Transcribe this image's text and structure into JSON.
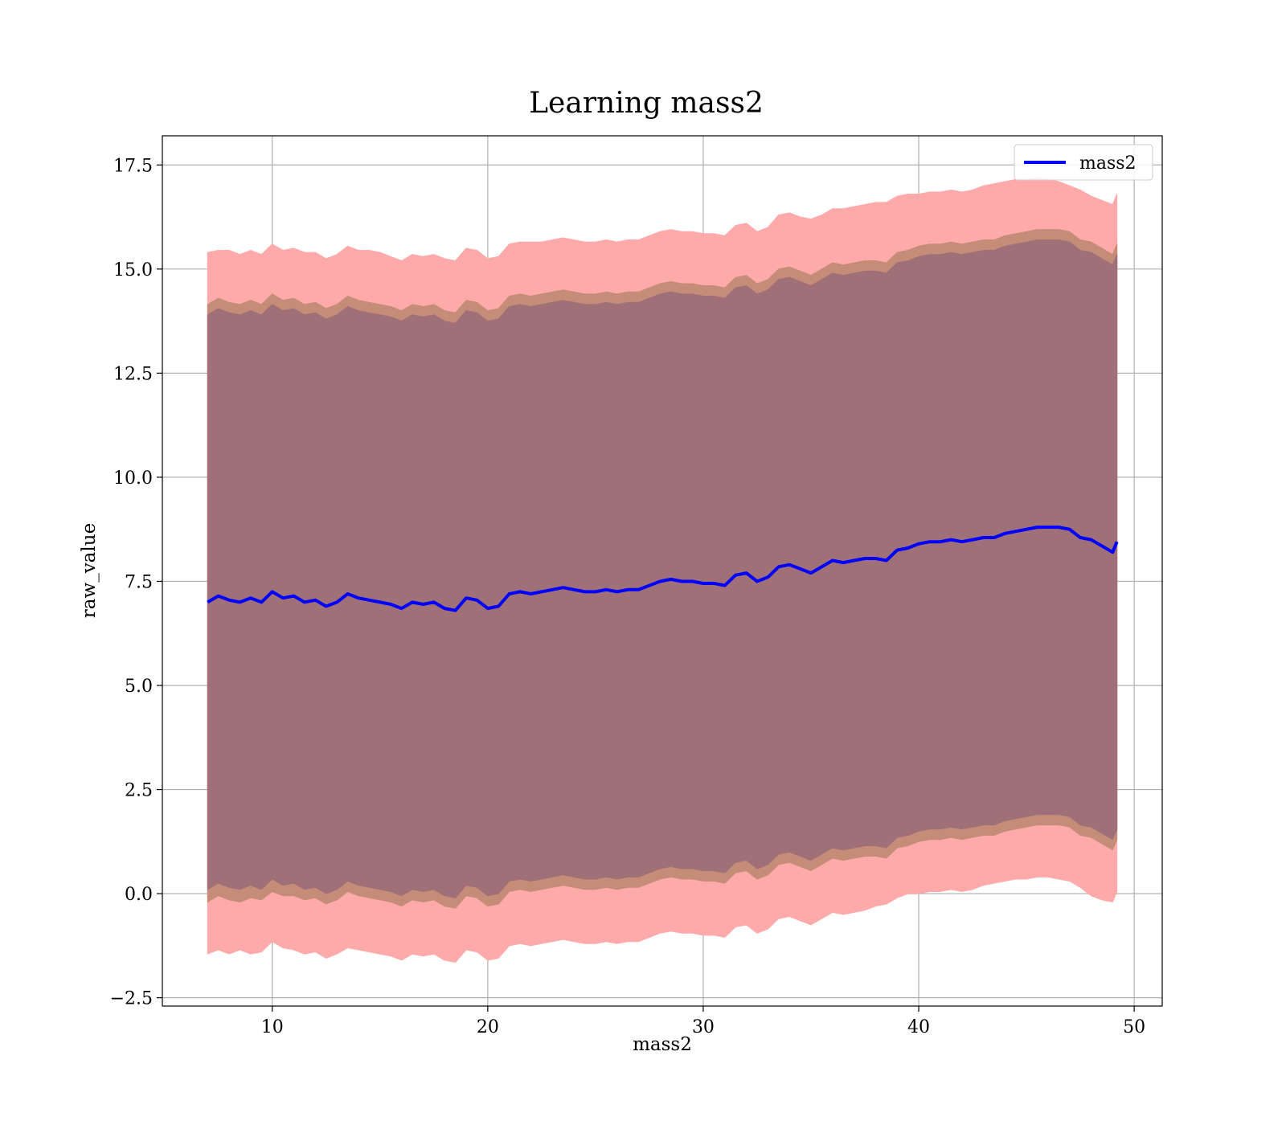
{
  "chart_data": {
    "type": "area",
    "title": "Learning mass2",
    "xlabel": "mass2",
    "ylabel": "raw_value",
    "xlim": [
      4.9,
      51.3
    ],
    "ylim": [
      -2.7,
      18.2
    ],
    "xticks": [
      10,
      20,
      30,
      40,
      50
    ],
    "yticks": [
      -2.5,
      0.0,
      2.5,
      5.0,
      7.5,
      10.0,
      12.5,
      15.0,
      17.5
    ],
    "xtick_labels": [
      "10",
      "20",
      "30",
      "40",
      "50"
    ],
    "ytick_labels": [
      "−2.5",
      "0.0",
      "2.5",
      "5.0",
      "7.5",
      "10.0",
      "12.5",
      "15.0",
      "17.5"
    ],
    "grid": true,
    "legend": {
      "position": "top-right",
      "entries": [
        "mass2"
      ]
    },
    "x": [
      7.0,
      7.5,
      8.0,
      8.5,
      9.0,
      9.5,
      10.0,
      10.5,
      11.0,
      11.5,
      12.0,
      12.5,
      13.0,
      13.5,
      14.0,
      14.5,
      15.0,
      15.5,
      16.0,
      16.5,
      17.0,
      17.5,
      18.0,
      18.5,
      19.0,
      19.5,
      20.0,
      20.5,
      21.0,
      21.5,
      22.0,
      22.5,
      23.0,
      23.5,
      24.0,
      24.5,
      25.0,
      25.5,
      26.0,
      26.5,
      27.0,
      27.5,
      28.0,
      28.5,
      29.0,
      29.5,
      30.0,
      30.5,
      31.0,
      31.5,
      32.0,
      32.5,
      33.0,
      33.5,
      34.0,
      34.5,
      35.0,
      35.5,
      36.0,
      36.5,
      37.0,
      37.5,
      38.0,
      38.5,
      39.0,
      39.5,
      40.0,
      40.5,
      41.0,
      41.5,
      42.0,
      42.5,
      43.0,
      43.5,
      44.0,
      44.5,
      45.0,
      45.5,
      46.0,
      46.5,
      47.0,
      47.5,
      48.0,
      48.5,
      49.0,
      49.2
    ],
    "series": [
      {
        "name": "mass2",
        "color": "#0000ff",
        "values": [
          7.0,
          7.15,
          7.05,
          7.0,
          7.1,
          7.0,
          7.25,
          7.1,
          7.15,
          7.0,
          7.05,
          6.9,
          7.0,
          7.2,
          7.1,
          7.05,
          7.0,
          6.95,
          6.85,
          7.0,
          6.95,
          7.0,
          6.85,
          6.8,
          7.1,
          7.05,
          6.85,
          6.9,
          7.2,
          7.25,
          7.2,
          7.25,
          7.3,
          7.35,
          7.3,
          7.25,
          7.25,
          7.3,
          7.25,
          7.3,
          7.3,
          7.4,
          7.5,
          7.55,
          7.5,
          7.5,
          7.45,
          7.45,
          7.4,
          7.65,
          7.7,
          7.5,
          7.6,
          7.85,
          7.9,
          7.8,
          7.7,
          7.85,
          8.0,
          7.95,
          8.0,
          8.05,
          8.05,
          8.0,
          8.25,
          8.3,
          8.4,
          8.45,
          8.45,
          8.5,
          8.45,
          8.5,
          8.55,
          8.55,
          8.65,
          8.7,
          8.75,
          8.8,
          8.8,
          8.8,
          8.75,
          8.55,
          8.5,
          8.35,
          8.2,
          8.45
        ]
      }
    ],
    "bands": [
      {
        "color": "#ffaaaa",
        "lower": [
          -1.45,
          -1.35,
          -1.45,
          -1.35,
          -1.45,
          -1.4,
          -1.15,
          -1.3,
          -1.35,
          -1.45,
          -1.4,
          -1.55,
          -1.45,
          -1.3,
          -1.35,
          -1.4,
          -1.45,
          -1.5,
          -1.6,
          -1.45,
          -1.5,
          -1.45,
          -1.6,
          -1.65,
          -1.35,
          -1.4,
          -1.6,
          -1.55,
          -1.25,
          -1.2,
          -1.25,
          -1.2,
          -1.15,
          -1.1,
          -1.15,
          -1.2,
          -1.2,
          -1.15,
          -1.2,
          -1.15,
          -1.15,
          -1.05,
          -0.95,
          -0.9,
          -0.95,
          -0.95,
          -1.0,
          -1.0,
          -1.05,
          -0.8,
          -0.75,
          -0.95,
          -0.85,
          -0.6,
          -0.55,
          -0.65,
          -0.75,
          -0.6,
          -0.45,
          -0.5,
          -0.45,
          -0.4,
          -0.3,
          -0.25,
          -0.1,
          0.0,
          0.0,
          0.05,
          0.05,
          0.1,
          0.05,
          0.1,
          0.2,
          0.25,
          0.3,
          0.35,
          0.35,
          0.4,
          0.4,
          0.35,
          0.3,
          0.15,
          -0.05,
          -0.15,
          -0.2,
          0.05
        ],
        "upper": [
          15.4,
          15.45,
          15.45,
          15.35,
          15.45,
          15.35,
          15.6,
          15.45,
          15.5,
          15.4,
          15.4,
          15.25,
          15.35,
          15.55,
          15.45,
          15.45,
          15.4,
          15.3,
          15.2,
          15.35,
          15.3,
          15.35,
          15.25,
          15.2,
          15.5,
          15.45,
          15.25,
          15.3,
          15.6,
          15.65,
          15.65,
          15.65,
          15.7,
          15.75,
          15.7,
          15.65,
          15.65,
          15.7,
          15.65,
          15.7,
          15.7,
          15.8,
          15.9,
          15.95,
          15.9,
          15.9,
          15.85,
          15.85,
          15.8,
          16.05,
          16.1,
          15.9,
          16.0,
          16.3,
          16.35,
          16.25,
          16.2,
          16.3,
          16.45,
          16.45,
          16.5,
          16.55,
          16.6,
          16.6,
          16.75,
          16.8,
          16.8,
          16.85,
          16.85,
          16.9,
          16.85,
          16.9,
          17.0,
          17.05,
          17.1,
          17.15,
          17.15,
          17.2,
          17.15,
          17.1,
          17.0,
          16.9,
          16.75,
          16.65,
          16.55,
          16.8
        ]
      },
      {
        "color": "#c58d78",
        "lower": [
          -0.2,
          -0.05,
          -0.15,
          -0.2,
          -0.1,
          -0.15,
          0.05,
          -0.05,
          -0.05,
          -0.15,
          -0.1,
          -0.25,
          -0.15,
          0.05,
          -0.05,
          -0.1,
          -0.15,
          -0.2,
          -0.3,
          -0.15,
          -0.2,
          -0.15,
          -0.3,
          -0.35,
          -0.05,
          -0.1,
          -0.3,
          -0.25,
          0.05,
          0.1,
          0.05,
          0.1,
          0.15,
          0.2,
          0.15,
          0.1,
          0.1,
          0.15,
          0.1,
          0.15,
          0.15,
          0.25,
          0.35,
          0.4,
          0.35,
          0.35,
          0.3,
          0.3,
          0.25,
          0.5,
          0.55,
          0.35,
          0.45,
          0.7,
          0.75,
          0.65,
          0.55,
          0.7,
          0.85,
          0.8,
          0.85,
          0.9,
          0.9,
          0.85,
          1.1,
          1.15,
          1.25,
          1.3,
          1.3,
          1.35,
          1.3,
          1.35,
          1.4,
          1.4,
          1.5,
          1.55,
          1.6,
          1.65,
          1.65,
          1.65,
          1.6,
          1.4,
          1.35,
          1.2,
          1.05,
          1.3
        ],
        "upper": [
          14.15,
          14.3,
          14.2,
          14.15,
          14.25,
          14.15,
          14.4,
          14.25,
          14.3,
          14.15,
          14.2,
          14.05,
          14.15,
          14.35,
          14.25,
          14.2,
          14.15,
          14.1,
          14.0,
          14.15,
          14.1,
          14.15,
          14.0,
          13.95,
          14.25,
          14.2,
          14.0,
          14.05,
          14.35,
          14.4,
          14.35,
          14.4,
          14.45,
          14.5,
          14.45,
          14.4,
          14.4,
          14.45,
          14.4,
          14.45,
          14.45,
          14.55,
          14.65,
          14.7,
          14.65,
          14.65,
          14.6,
          14.6,
          14.55,
          14.8,
          14.85,
          14.65,
          14.75,
          15.0,
          15.05,
          14.95,
          14.85,
          15.0,
          15.15,
          15.1,
          15.15,
          15.2,
          15.2,
          15.15,
          15.4,
          15.45,
          15.55,
          15.6,
          15.6,
          15.65,
          15.6,
          15.65,
          15.7,
          15.7,
          15.8,
          15.85,
          15.9,
          15.95,
          15.95,
          15.95,
          15.9,
          15.7,
          15.65,
          15.5,
          15.35,
          15.6
        ]
      },
      {
        "color": "#a07078",
        "lower": [
          0.1,
          0.25,
          0.15,
          0.1,
          0.2,
          0.1,
          0.35,
          0.2,
          0.25,
          0.1,
          0.15,
          0.0,
          0.1,
          0.3,
          0.2,
          0.15,
          0.1,
          0.05,
          -0.05,
          0.1,
          0.05,
          0.1,
          -0.05,
          -0.1,
          0.2,
          0.15,
          -0.05,
          0.0,
          0.3,
          0.35,
          0.3,
          0.35,
          0.4,
          0.45,
          0.4,
          0.35,
          0.35,
          0.4,
          0.35,
          0.4,
          0.4,
          0.5,
          0.6,
          0.65,
          0.6,
          0.6,
          0.55,
          0.55,
          0.5,
          0.75,
          0.8,
          0.6,
          0.7,
          0.95,
          1.0,
          0.9,
          0.8,
          0.95,
          1.1,
          1.05,
          1.1,
          1.15,
          1.15,
          1.1,
          1.35,
          1.4,
          1.5,
          1.55,
          1.55,
          1.6,
          1.55,
          1.6,
          1.65,
          1.65,
          1.75,
          1.8,
          1.85,
          1.9,
          1.9,
          1.9,
          1.85,
          1.65,
          1.6,
          1.45,
          1.3,
          1.55
        ],
        "upper": [
          13.9,
          14.05,
          13.95,
          13.9,
          14.0,
          13.9,
          14.15,
          14.0,
          14.05,
          13.9,
          13.95,
          13.8,
          13.9,
          14.1,
          14.0,
          13.95,
          13.9,
          13.85,
          13.75,
          13.9,
          13.85,
          13.9,
          13.75,
          13.7,
          14.0,
          13.95,
          13.75,
          13.8,
          14.1,
          14.15,
          14.1,
          14.15,
          14.2,
          14.25,
          14.2,
          14.15,
          14.15,
          14.2,
          14.15,
          14.2,
          14.2,
          14.3,
          14.4,
          14.45,
          14.4,
          14.4,
          14.35,
          14.35,
          14.3,
          14.55,
          14.6,
          14.4,
          14.5,
          14.75,
          14.8,
          14.7,
          14.6,
          14.75,
          14.9,
          14.85,
          14.9,
          14.95,
          14.95,
          14.9,
          15.15,
          15.2,
          15.3,
          15.35,
          15.35,
          15.4,
          15.35,
          15.4,
          15.45,
          15.45,
          15.55,
          15.6,
          15.65,
          15.7,
          15.7,
          15.7,
          15.65,
          15.45,
          15.4,
          15.25,
          15.1,
          15.35
        ]
      }
    ]
  }
}
